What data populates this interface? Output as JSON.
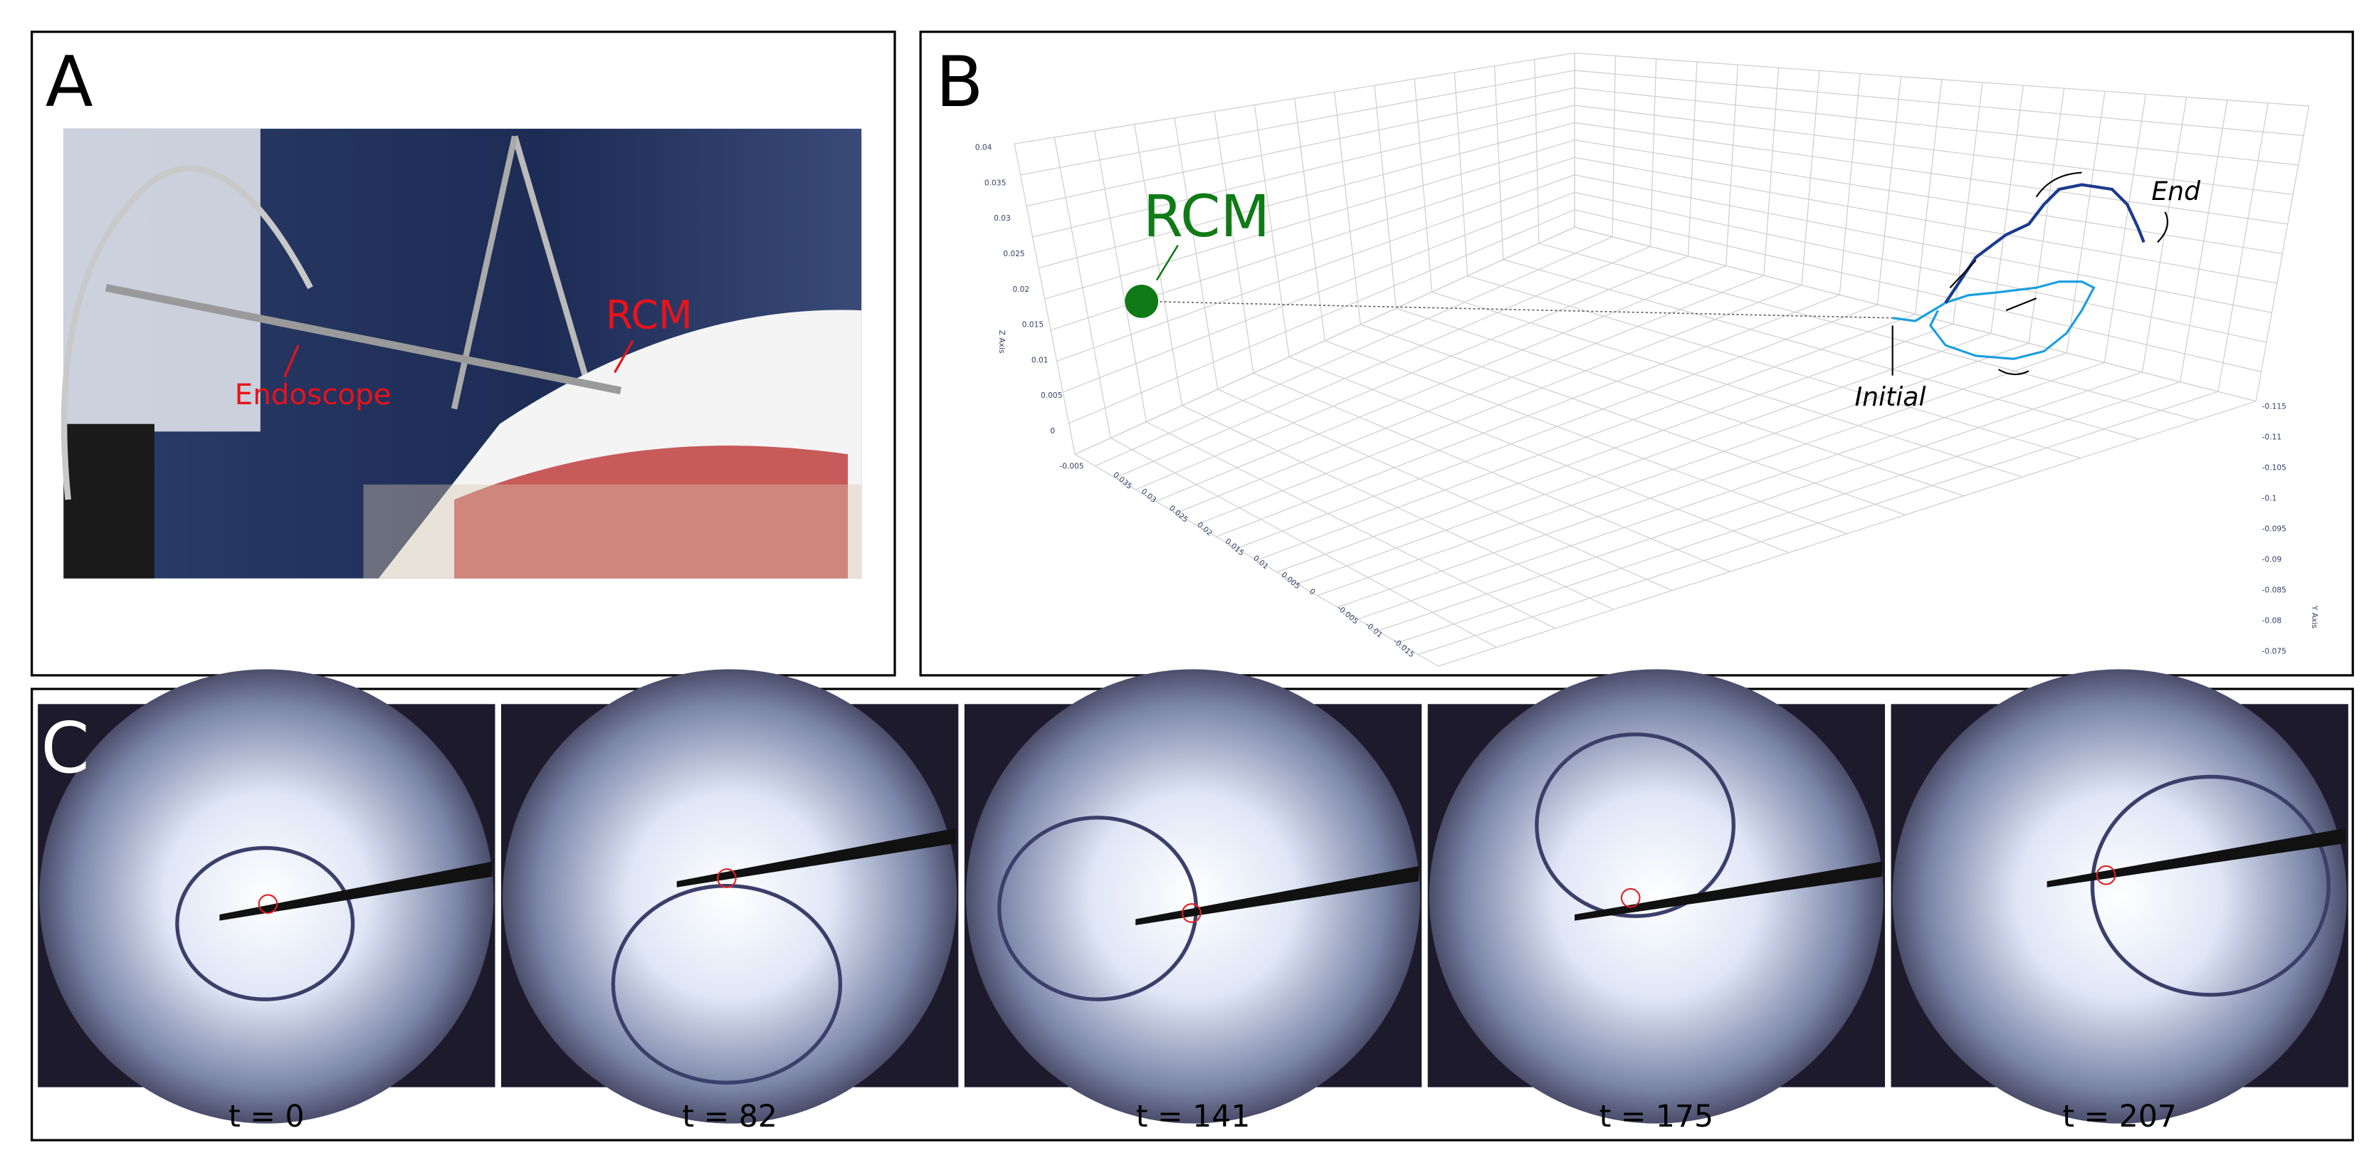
{
  "panel_a": {
    "label": "A",
    "rcm": "RCM",
    "endoscope": "Endoscope"
  },
  "panel_b": {
    "label": "B",
    "rcm": "RCM",
    "end": "End",
    "initial": "Initial",
    "z_axis": "Z Axis",
    "y_axis": "Y Axis",
    "z_ticks": [
      "0.04",
      "0.035",
      "0.03",
      "0.025",
      "0.02",
      "0.015",
      "0.01",
      "0.005",
      "0",
      "-0.005"
    ],
    "x_ticks": [
      "0.035",
      "0.03",
      "0.025",
      "0.02",
      "0.015",
      "0.01",
      "0.005",
      "0",
      "-0.005",
      "-0.01",
      "-0.015"
    ],
    "y_ticks": [
      "-0.115",
      "-0.11",
      "-0.105",
      "-0.1",
      "-0.095",
      "-0.09",
      "-0.085",
      "-0.08",
      "-0.075"
    ]
  },
  "panel_c": {
    "label": "C",
    "captions": [
      "t = 0",
      "t = 82",
      "t = 141",
      "t = 175",
      "t = 207"
    ]
  }
}
